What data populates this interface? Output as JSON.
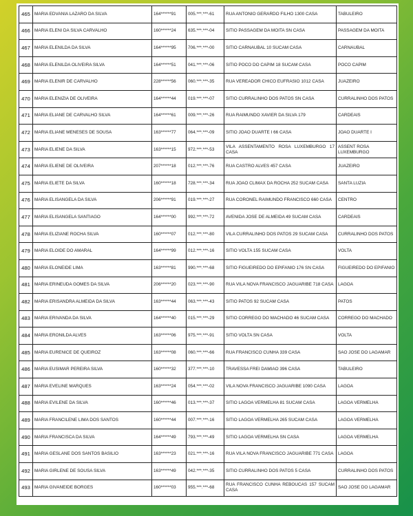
{
  "rows": [
    {
      "num": "465",
      "name": "MARIA EDVANIA LAZARO DA SILVA",
      "nis": "164******91",
      "cpf": "005.***.***-61",
      "address": "RUA ANTONIO GERARDO FILHO 1300 CASA",
      "locality": "TABULEIRO"
    },
    {
      "num": "466",
      "name": "MARIA ELENI DA SILVA CARVALHO",
      "nis": "160******24",
      "cpf": "635.***.***-04",
      "address": "SITIO PASSAGEM DA MOITA SN CASA",
      "locality": "PASSAGEM DA MOITA"
    },
    {
      "num": "467",
      "name": "MARIA ELENILDA DA SILVA",
      "nis": "164******95",
      "cpf": "706.***.***-00",
      "address": "SITIO CARNAUBAL 10 SUCAM CASA",
      "locality": "CARNAUBAL"
    },
    {
      "num": "468",
      "name": "MARIA ELENILDA OLIVEIRA SILVA",
      "nis": "164******51",
      "cpf": "041.***.***-06",
      "address": "SITIO POCO DO CAPIM 18 SUCAM CASA",
      "locality": "POCO CAPIM"
    },
    {
      "num": "469",
      "name": "MARIA ELENIR DE CARVALHO",
      "nis": "228******56",
      "cpf": "060.***.***-35",
      "address": "RUA VEREADOR CHICO EUFRASIO 1012 CASA",
      "locality": "JUAZEIRO"
    },
    {
      "num": "470",
      "name": "MARIA ELENIZIA DE OLIVEIRA",
      "nis": "164******44",
      "cpf": "019.***.***-07",
      "address": "SITIO CURRALINHO DOS PATOS SN CASA",
      "locality": "CURRALINHO DOS PATOS"
    },
    {
      "num": "471",
      "name": "MARIA ELIANE DE CARVALHO SILVA",
      "nis": "164******61",
      "cpf": "009.***.***-26",
      "address": "RUA RAIMUNDO XAVIER DA SILVA 179",
      "locality": "CARDEAIS"
    },
    {
      "num": "472",
      "name": "MARIA ELIANE MENESES DE SOUSA",
      "nis": "163******77",
      "cpf": "064.***.***-09",
      "address": "SITIO JOAO DUARTE I 66 CASA",
      "locality": "JOAO DUARTE I"
    },
    {
      "num": "473",
      "name": "MARIA ELIENE DA SILVA",
      "nis": "163******15",
      "cpf": "972.***.***-53",
      "address": "VILA ASSENTAMENTO ROSA LUXEMBURGO 17 CASA",
      "locality": "ASSENT ROSA LUXEMBURGO"
    },
    {
      "num": "474",
      "name": "MARIA ELIENE DE OLIVEIRA",
      "nis": "207******18",
      "cpf": "012.***.***-76",
      "address": "RUA CASTRO ALVES 457 CASA",
      "locality": "JUAZEIRO"
    },
    {
      "num": "475",
      "name": "MARIA ELIETE DA SILVA",
      "nis": "160******18",
      "cpf": "728.***.***-34",
      "address": "RUA JOAO CLIMAX DA ROCHA 252 SUCAM CASA",
      "locality": "SANTA LUZIA"
    },
    {
      "num": "476",
      "name": "MARIA ELISANGELA DA SILVA",
      "nis": "206******91",
      "cpf": "019.***.***-27",
      "address": "RUA CORONEL RAIMUNDO FRANCISCO 660 CASA",
      "locality": "CENTRO"
    },
    {
      "num": "477",
      "name": "MARIA ELISANGELA SANTIAGO",
      "nis": "164******00",
      "cpf": "992.***.***-72",
      "address": "AVENIDA JOSE DE ALMEIDA 49 SUCAM CASA",
      "locality": "CARDEAIS"
    },
    {
      "num": "478",
      "name": "MARIA ELIZIANE ROCHA SILVA",
      "nis": "160******07",
      "cpf": "012.***.***-80",
      "address": "VILA CURRALINHO DOS PATOS 29 SUCAM CASA",
      "locality": "CURRALINHO DOS PATOS"
    },
    {
      "num": "479",
      "name": "MARIA ELOIDE DO AMARAL",
      "nis": "164******99",
      "cpf": "012.***.***-16",
      "address": "SITIO VOLTA 155 SUCAM CASA",
      "locality": "VOLTA"
    },
    {
      "num": "480",
      "name": "MARIA ELONEIDE LIMA",
      "nis": "163******81",
      "cpf": "990.***.***-68",
      "address": "SITIO FIGUEIREDO DO EPIFANIO 176 SN CASA",
      "locality": "FIGUEIREDO DO EPIFANIO"
    },
    {
      "num": "481",
      "name": "MARIA ERINEUDA GOMES DA SILVA",
      "nis": "206******20",
      "cpf": "023.***.***-90",
      "address": "RUA VILA NOVA FRANCISCO JAGUARIBE 718 CASA",
      "locality": "LAGOA"
    },
    {
      "num": "482",
      "name": "MARIA ERISANDRA ALMEIDA DA SILVA",
      "nis": "163******44",
      "cpf": "063.***.***-43",
      "address": "SITIO PATOS 92 SUCAM CASA",
      "locality": "PATOS"
    },
    {
      "num": "483",
      "name": "MARIA ERIVANDA DA SILVA",
      "nis": "164******40",
      "cpf": "015.***.***-29",
      "address": "SITIO CORREGO DO MACHADO 46 SUCAM CASA",
      "locality": "CORREGO DO MACHADO"
    },
    {
      "num": "484",
      "name": "MARIA ERONILDA ALVES",
      "nis": "163******06",
      "cpf": "975.***.***-91",
      "address": "SITIO VOLTA SN CASA",
      "locality": "VOLTA"
    },
    {
      "num": "485",
      "name": "MARIA EURENICE DE QUEIROZ",
      "nis": "163******08",
      "cpf": "060.***.***-66",
      "address": "RUA FRANCISCO CUNHA 339 CASA",
      "locality": "SAO JOSE DO LAGAMAR"
    },
    {
      "num": "486",
      "name": "MARIA EUSIMAR PEREIRA SILVA",
      "nis": "160******32",
      "cpf": "377.***.***-10",
      "address": "TRAVESSA FREI DAMIAO 396 CASA",
      "locality": "TABULEIRO"
    },
    {
      "num": "487",
      "name": "MARIA EVELINE MARQUES",
      "nis": "163******24",
      "cpf": "054.***.***-02",
      "address": "VILA NOVA FRANCISCO JAGUARIBE 1090 CASA",
      "locality": "LAGOA"
    },
    {
      "num": "488",
      "name": "MARIA EVILENE DA SILVA",
      "nis": "160******46",
      "cpf": "013.***.***-37",
      "address": "SITIO LAGOA VERMELHA 81 SUCAM CASA",
      "locality": "LAGOA VERMELHA"
    },
    {
      "num": "489",
      "name": "MARIA FRANCILENE LIMA DOS SANTOS",
      "nis": "160******44",
      "cpf": "007.***.***-16",
      "address": "SITIO LAGOA VERMELHA 265 SUCAM CASA",
      "locality": "LAGOA VERMELHA"
    },
    {
      "num": "490",
      "name": "MARIA FRANCISCA DA SILVA",
      "nis": "164******49",
      "cpf": "793.***.***-49",
      "address": "SITIO LAGOA VERMELHA SN CASA",
      "locality": "LAGOA VERMELHA"
    },
    {
      "num": "491",
      "name": "MARIA GESLANE DOS SANTOS BASILIO",
      "nis": "163******23",
      "cpf": "021.***.***-16",
      "address": "RUA VILA NOVA FRANCISCO JAGUARIBE 771 CASA",
      "locality": "LAGOA"
    },
    {
      "num": "492",
      "name": "MARIA GIRLENE DE SOUSA SILVA",
      "nis": "163******49",
      "cpf": "042.***.***-35",
      "address": "SITIO CURRALINHO DOS PATOS 5 CASA",
      "locality": "CURRALINHO DOS PATOS"
    },
    {
      "num": "493",
      "name": "MARIA GIVANEIDE BORGES",
      "nis": "160******03",
      "cpf": "955.***.***-68",
      "address": "RUA FRANCISCO CUNHA REBOUCAS 157 SUCAM CASA",
      "locality": "SAO JOSE DO LAGAMAR"
    }
  ]
}
